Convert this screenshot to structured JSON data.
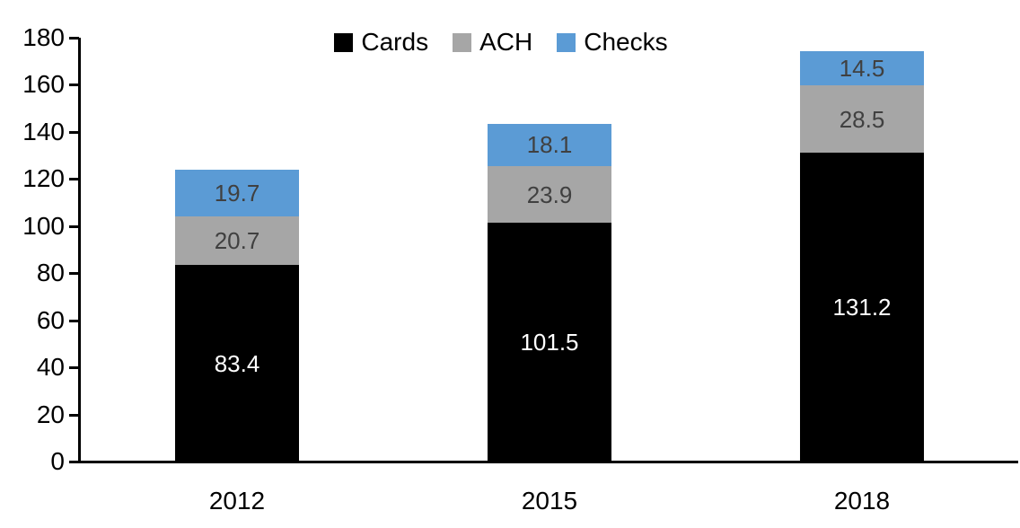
{
  "chart_data": {
    "type": "bar",
    "stacked": true,
    "title": "",
    "categories": [
      "2012",
      "2015",
      "2018"
    ],
    "series": [
      {
        "name": "Cards",
        "color": "#000000",
        "label_color": "#ffffff",
        "values": [
          83.4,
          101.5,
          131.2
        ],
        "labels": [
          "83.4",
          "101.5",
          "131.2"
        ]
      },
      {
        "name": "ACH",
        "color": "#A6A6A6",
        "label_color": "#404040",
        "values": [
          20.7,
          23.9,
          28.5
        ],
        "labels": [
          "20.7",
          "23.9",
          "28.5"
        ]
      },
      {
        "name": "Checks",
        "color": "#5B9BD5",
        "label_color": "#404040",
        "values": [
          19.7,
          18.1,
          14.5
        ],
        "labels": [
          "19.7",
          "18.1",
          "14.5"
        ]
      }
    ],
    "totals": [
      123.8,
      143.5,
      174.2
    ],
    "ylim": [
      0,
      180
    ],
    "ytick_step": 20,
    "yticks": [
      "0",
      "20",
      "40",
      "60",
      "80",
      "100",
      "120",
      "140",
      "160",
      "180"
    ],
    "xlabel": "",
    "ylabel": "",
    "grid": false,
    "legend": {
      "position": "top-center",
      "entries": [
        "Cards",
        "ACH",
        "Checks"
      ]
    },
    "colors": {
      "axis": "#000000",
      "background": "#ffffff",
      "cards": "#000000",
      "ach": "#A6A6A6",
      "checks": "#5B9BD5"
    }
  }
}
